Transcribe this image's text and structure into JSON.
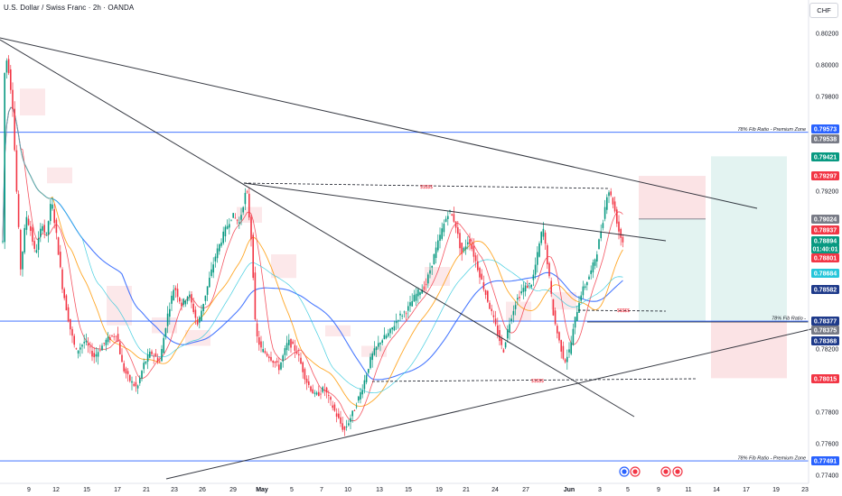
{
  "header": {
    "title": "U.S. Dollar / Swiss Franc · 2h · OANDA",
    "currency": "CHF"
  },
  "colors": {
    "up": "#089981",
    "down": "#f23645",
    "fib_line": "#2962ff",
    "trendline": "#131722",
    "long_target_zone": "#e3f3f1",
    "short_stop_zone": "#fbe3e5",
    "cloud": "#fce4e6",
    "ma_blue": "#2962ff",
    "ma_orange": "#ff9800",
    "ma_red": "#f23645",
    "ma_cyan": "#26c6da"
  },
  "chart_data": {
    "type": "candlestick",
    "symbol": "USDCHF",
    "interval": "2h",
    "broker": "OANDA",
    "y_axis": {
      "ticks": [
        "0.80200",
        "0.80000",
        "0.79800",
        "0.79200",
        "0.78200",
        "0.77800",
        "0.77600",
        "0.77400"
      ],
      "range": [
        0.7735,
        0.8035
      ]
    },
    "x_axis": {
      "ticks": [
        "9",
        "12",
        "15",
        "17",
        "21",
        "23",
        "26",
        "29",
        "May",
        "5",
        "7",
        "10",
        "13",
        "15",
        "19",
        "21",
        "24",
        "27",
        "Jun",
        "3",
        "5",
        "9",
        "11",
        "14",
        "17",
        "19",
        "23"
      ]
    },
    "fib_levels": [
      {
        "label": "78% Fib Ratio - Premium Zone",
        "price": 0.79573
      },
      {
        "label": "78% Fib Ratio -",
        "price": 0.78377
      },
      {
        "label": "78% Fib Ratio - Premium Zone",
        "price": 0.77491
      }
    ],
    "price_tags": [
      {
        "value": "0.79573",
        "color": "#2962ff"
      },
      {
        "value": "0.79538",
        "color": "#787b86"
      },
      {
        "value": "0.79421",
        "color": "#089981"
      },
      {
        "value": "0.79297",
        "color": "#f23645"
      },
      {
        "value": "0.79024",
        "color": "#787b86"
      },
      {
        "value": "0.78937",
        "color": "#f23645"
      },
      {
        "value": "0.78894",
        "color": "#089981"
      },
      {
        "value": "01:40:01",
        "color": "#089981"
      },
      {
        "value": "0.78801",
        "color": "#f23645"
      },
      {
        "value": "0.78684",
        "color": "#26c6da"
      },
      {
        "value": "0.78582",
        "color": "#1e3a8a"
      },
      {
        "value": "0.78377",
        "color": "#1e3a8a"
      },
      {
        "value": "0.78375",
        "color": "#787b86"
      },
      {
        "value": "0.78368",
        "color": "#1e3a8a"
      },
      {
        "value": "0.78015",
        "color": "#f23645"
      },
      {
        "value": "0.77491",
        "color": "#2962ff"
      }
    ],
    "liquidity_labels": [
      "$$$$$",
      "$$$$$",
      "$$$$$"
    ],
    "trendlines": "descending resistance, wedge lines, ascending support (drawings)",
    "positions": [
      {
        "type": "long",
        "entry": 0.79024,
        "stop": 0.78377,
        "target": 0.79421
      },
      {
        "type": "short",
        "entry": 0.78377,
        "stop": 0.79297,
        "target": 0.78015
      }
    ],
    "grid": false,
    "legend": "none"
  }
}
